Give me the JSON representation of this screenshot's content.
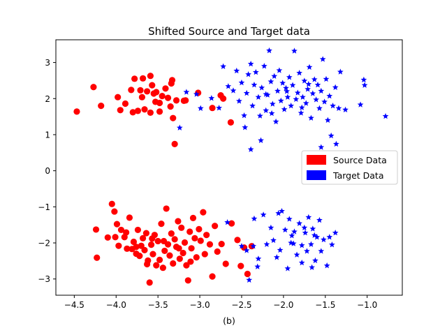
{
  "chart_data": {
    "type": "scatter",
    "title": "Shifted Source and Target data",
    "xlabel": "(b)",
    "ylabel": "",
    "xlim": [
      -4.72,
      -0.58
    ],
    "ylim": [
      -3.45,
      3.63
    ],
    "xticks": [
      -4.5,
      -4.0,
      -3.5,
      -3.0,
      -2.5,
      -2.0,
      -1.5,
      -1.0
    ],
    "xtick_labels": [
      "−4.5",
      "−4.0",
      "−3.5",
      "−3.0",
      "−2.5",
      "−2.0",
      "−1.5",
      "−1.0"
    ],
    "yticks": [
      -3,
      -2,
      -1,
      0,
      1,
      2,
      3
    ],
    "ytick_labels": [
      "−3",
      "−2",
      "−1",
      "0",
      "1",
      "2",
      "3"
    ],
    "grid": false,
    "legend_position": "center-right",
    "series": [
      {
        "name": "Source Data",
        "color": "#ff0000",
        "marker": "circle",
        "points": [
          [
            -4.47,
            1.64
          ],
          [
            -4.27,
            2.32
          ],
          [
            -4.18,
            1.8
          ],
          [
            -3.98,
            2.04
          ],
          [
            -3.89,
            1.86
          ],
          [
            -3.82,
            2.24
          ],
          [
            -3.78,
            2.55
          ],
          [
            -3.71,
            2.23
          ],
          [
            -3.69,
            2.04
          ],
          [
            -3.68,
            2.56
          ],
          [
            -3.63,
            2.2
          ],
          [
            -3.59,
            2.63
          ],
          [
            -3.57,
            2.37
          ],
          [
            -3.55,
            2.14
          ],
          [
            -3.53,
            1.91
          ],
          [
            -3.52,
            2.18
          ],
          [
            -3.48,
            1.88
          ],
          [
            -3.45,
            2.07
          ],
          [
            -3.41,
            2.28
          ],
          [
            -3.38,
            2.02
          ],
          [
            -3.35,
            1.78
          ],
          [
            -3.28,
            1.95
          ],
          [
            -3.33,
            2.51
          ],
          [
            -3.34,
            2.42
          ],
          [
            -3.32,
            1.46
          ],
          [
            -3.3,
            0.74
          ],
          [
            -3.19,
            1.94
          ],
          [
            -3.17,
            1.95
          ],
          [
            -3.02,
            2.16
          ],
          [
            -2.85,
            1.74
          ],
          [
            -2.75,
            2.09
          ],
          [
            -2.72,
            2.0
          ],
          [
            -2.63,
            1.34
          ],
          [
            -3.8,
            1.62
          ],
          [
            -3.66,
            1.7
          ],
          [
            -3.59,
            1.61
          ],
          [
            -3.95,
            1.68
          ],
          [
            -3.74,
            1.66
          ],
          [
            -3.48,
            1.64
          ],
          [
            -4.24,
            -1.63
          ],
          [
            -4.23,
            -2.41
          ],
          [
            -4.1,
            -1.85
          ],
          [
            -4.05,
            -0.92
          ],
          [
            -4.02,
            -1.13
          ],
          [
            -4.01,
            -1.84
          ],
          [
            -3.99,
            -1.48
          ],
          [
            -3.97,
            -2.08
          ],
          [
            -3.94,
            -1.64
          ],
          [
            -3.9,
            -1.84
          ],
          [
            -3.88,
            -1.71
          ],
          [
            -3.84,
            -1.3
          ],
          [
            -3.81,
            -2.17
          ],
          [
            -3.79,
            -1.97
          ],
          [
            -3.76,
            -2.3
          ],
          [
            -3.74,
            -1.64
          ],
          [
            -3.72,
            -2.36
          ],
          [
            -3.7,
            -2.08
          ],
          [
            -3.68,
            -1.87
          ],
          [
            -3.66,
            -2.2
          ],
          [
            -3.64,
            -1.73
          ],
          [
            -3.62,
            -2.49
          ],
          [
            -3.6,
            -3.1
          ],
          [
            -3.58,
            -2.05
          ],
          [
            -3.56,
            -2.31
          ],
          [
            -3.54,
            -1.78
          ],
          [
            -3.52,
            -2.62
          ],
          [
            -3.5,
            -1.95
          ],
          [
            -3.48,
            -2.47
          ],
          [
            -3.46,
            -1.47
          ],
          [
            -3.44,
            -2.69
          ],
          [
            -3.42,
            -2.22
          ],
          [
            -3.4,
            -1.05
          ],
          [
            -3.38,
            -2.04
          ],
          [
            -3.36,
            -2.35
          ],
          [
            -3.34,
            -1.74
          ],
          [
            -3.32,
            -2.57
          ],
          [
            -3.3,
            -1.9
          ],
          [
            -3.28,
            -2.11
          ],
          [
            -3.26,
            -1.4
          ],
          [
            -3.24,
            -2.44
          ],
          [
            -3.22,
            -1.58
          ],
          [
            -3.2,
            -2.28
          ],
          [
            -3.18,
            -1.99
          ],
          [
            -3.16,
            -2.62
          ],
          [
            -3.14,
            -3.04
          ],
          [
            -3.12,
            -1.69
          ],
          [
            -3.1,
            -2.15
          ],
          [
            -3.08,
            -1.31
          ],
          [
            -3.06,
            -1.87
          ],
          [
            -3.04,
            -2.4
          ],
          [
            -3.01,
            -1.62
          ],
          [
            -2.99,
            -1.94
          ],
          [
            -2.96,
            -1.15
          ],
          [
            -2.94,
            -2.31
          ],
          [
            -2.92,
            -1.78
          ],
          [
            -2.88,
            -2.04
          ],
          [
            -2.85,
            -2.93
          ],
          [
            -2.82,
            -1.53
          ],
          [
            -2.79,
            -2.24
          ],
          [
            -2.74,
            -2.03
          ],
          [
            -2.69,
            -2.58
          ],
          [
            -2.62,
            -1.46
          ],
          [
            -2.55,
            -1.92
          ],
          [
            -2.51,
            -2.64
          ],
          [
            -2.47,
            -2.13
          ],
          [
            -2.43,
            -2.86
          ],
          [
            -2.38,
            -2.09
          ],
          [
            -3.87,
            -2.16
          ],
          [
            -3.63,
            -2.59
          ],
          [
            -3.43,
            -1.95
          ],
          [
            -3.25,
            -2.15
          ],
          [
            -3.57,
            -1.88
          ],
          [
            -3.11,
            -2.52
          ],
          [
            -3.76,
            -2.11
          ]
        ]
      },
      {
        "name": "Target Data",
        "color": "#0000ff",
        "marker": "star",
        "points": [
          [
            -3.24,
            1.19
          ],
          [
            -3.16,
            2.18
          ],
          [
            -3.04,
            2.12
          ],
          [
            -2.99,
            1.73
          ],
          [
            -2.86,
            2.01
          ],
          [
            -2.77,
            1.74
          ],
          [
            -2.72,
            2.89
          ],
          [
            -2.66,
            2.34
          ],
          [
            -2.6,
            2.22
          ],
          [
            -2.56,
            2.77
          ],
          [
            -2.53,
            1.93
          ],
          [
            -2.5,
            2.44
          ],
          [
            -2.47,
            1.53
          ],
          [
            -2.44,
            2.15
          ],
          [
            -2.42,
            2.67
          ],
          [
            -2.39,
            2.96
          ],
          [
            -2.37,
            1.8
          ],
          [
            -2.35,
            2.38
          ],
          [
            -2.33,
            2.73
          ],
          [
            -2.3,
            2.04
          ],
          [
            -2.28,
            1.52
          ],
          [
            -2.26,
            2.3
          ],
          [
            -2.23,
            2.9
          ],
          [
            -2.21,
            1.67
          ],
          [
            -2.19,
            2.1
          ],
          [
            -2.17,
            3.33
          ],
          [
            -2.15,
            2.47
          ],
          [
            -2.13,
            1.85
          ],
          [
            -2.11,
            2.62
          ],
          [
            -2.09,
            1.36
          ],
          [
            -2.07,
            2.21
          ],
          [
            -2.05,
            2.78
          ],
          [
            -2.03,
            1.94
          ],
          [
            -2.01,
            2.43
          ],
          [
            -1.99,
            1.7
          ],
          [
            -1.97,
            2.29
          ],
          [
            -1.95,
            2.04
          ],
          [
            -1.93,
            2.59
          ],
          [
            -1.91,
            1.8
          ],
          [
            -1.89,
            2.37
          ],
          [
            -1.87,
            3.32
          ],
          [
            -1.85,
            1.98
          ],
          [
            -1.83,
            2.16
          ],
          [
            -1.81,
            2.71
          ],
          [
            -1.79,
            1.6
          ],
          [
            -1.77,
            2.04
          ],
          [
            -1.75,
            2.49
          ],
          [
            -1.73,
            1.87
          ],
          [
            -1.71,
            2.26
          ],
          [
            -1.69,
            2.87
          ],
          [
            -1.67,
            1.46
          ],
          [
            -1.65,
            2.14
          ],
          [
            -1.63,
            2.53
          ],
          [
            -1.61,
            1.97
          ],
          [
            -1.59,
            2.38
          ],
          [
            -1.57,
            1.73
          ],
          [
            -1.55,
            2.21
          ],
          [
            -1.53,
            3.09
          ],
          [
            -1.51,
            1.91
          ],
          [
            -1.49,
            2.54
          ],
          [
            -1.47,
            1.4
          ],
          [
            -1.45,
            2.07
          ],
          [
            -1.41,
            1.8
          ],
          [
            -1.38,
            2.31
          ],
          [
            -1.34,
            1.73
          ],
          [
            -1.32,
            2.74
          ],
          [
            -1.26,
            1.69
          ],
          [
            -1.03,
            2.37
          ],
          [
            -1.04,
            2.52
          ],
          [
            -1.08,
            1.83
          ],
          [
            -0.78,
            1.51
          ],
          [
            -1.55,
            0.65
          ],
          [
            -1.43,
            0.97
          ],
          [
            -1.37,
            0.74
          ],
          [
            -2.39,
            0.59
          ],
          [
            -2.27,
            0.84
          ],
          [
            -2.46,
            1.2
          ],
          [
            -2.21,
            2.12
          ],
          [
            -2.14,
            1.59
          ],
          [
            -1.96,
            2.2
          ],
          [
            -1.78,
            1.75
          ],
          [
            -1.7,
            2.4
          ],
          [
            -2.67,
            -1.43
          ],
          [
            -2.41,
            -3.03
          ],
          [
            -2.36,
            -2.09
          ],
          [
            -2.35,
            -1.33
          ],
          [
            -2.3,
            -2.44
          ],
          [
            -2.24,
            -1.22
          ],
          [
            -2.2,
            -2.04
          ],
          [
            -2.15,
            -1.58
          ],
          [
            -2.12,
            -1.93
          ],
          [
            -2.06,
            -1.18
          ],
          [
            -2.02,
            -1.12
          ],
          [
            -1.98,
            -1.64
          ],
          [
            -1.95,
            -2.71
          ],
          [
            -1.93,
            -1.34
          ],
          [
            -1.91,
            -2.0
          ],
          [
            -1.87,
            -1.69
          ],
          [
            -1.84,
            -2.33
          ],
          [
            -1.81,
            -1.46
          ],
          [
            -1.78,
            -2.07
          ],
          [
            -1.75,
            -1.58
          ],
          [
            -1.72,
            -2.23
          ],
          [
            -1.7,
            -1.29
          ],
          [
            -1.67,
            -2.04
          ],
          [
            -1.65,
            -1.61
          ],
          [
            -1.62,
            -2.49
          ],
          [
            -1.6,
            -1.84
          ],
          [
            -1.57,
            -1.37
          ],
          [
            -1.55,
            -2.23
          ],
          [
            -1.52,
            -1.91
          ],
          [
            -1.48,
            -2.63
          ],
          [
            -1.45,
            -1.84
          ],
          [
            -1.42,
            -2.05
          ],
          [
            -1.38,
            -1.72
          ],
          [
            -1.63,
            -1.79
          ],
          [
            -2.44,
            -2.21
          ],
          [
            -2.08,
            -2.4
          ],
          [
            -1.88,
            -2.02
          ],
          [
            -2.31,
            -2.66
          ],
          [
            -1.66,
            -2.68
          ],
          [
            -1.78,
            -2.55
          ],
          [
            -2.5,
            -2.09
          ],
          [
            -2.04,
            -2.2
          ],
          [
            -1.9,
            -1.8
          ],
          [
            -1.74,
            -1.72
          ]
        ]
      }
    ]
  }
}
